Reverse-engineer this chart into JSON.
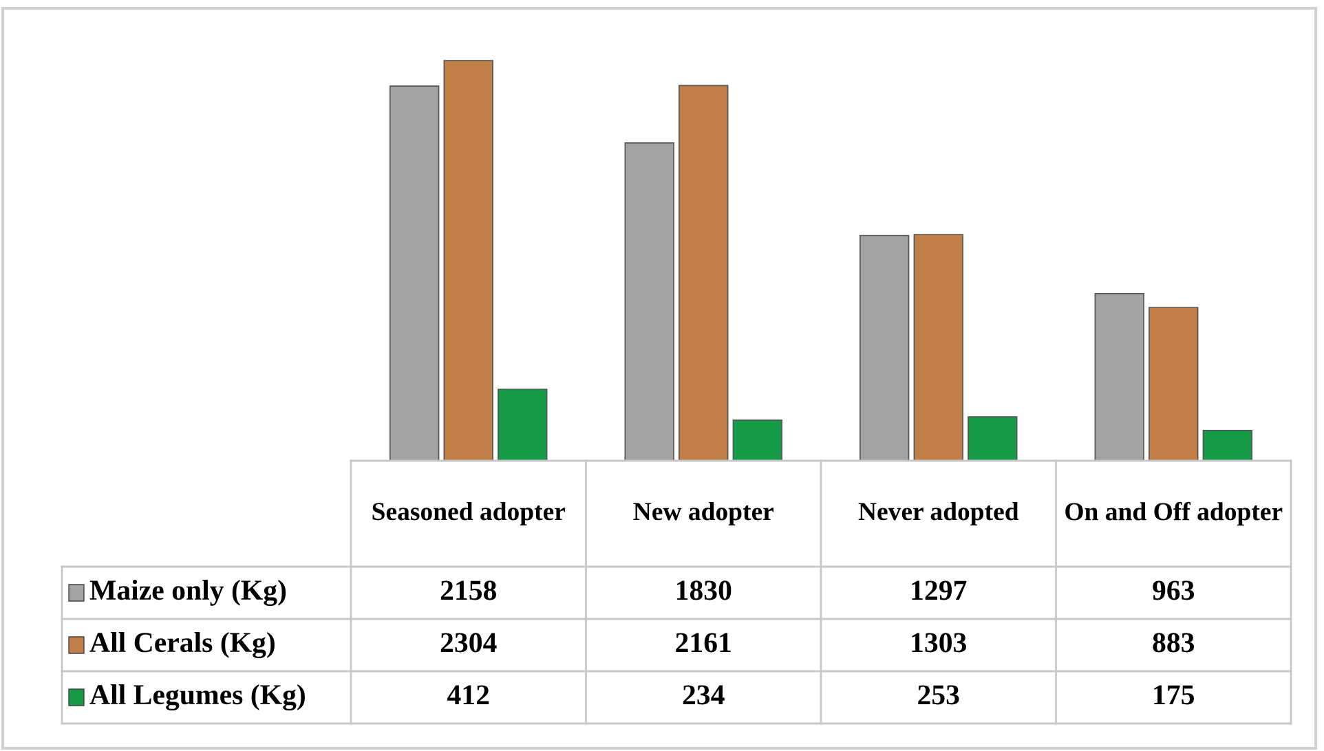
{
  "chart_data": {
    "type": "bar",
    "categories": [
      "Seasoned adopter",
      "New adopter",
      "Never adopted",
      "On and Off adopter"
    ],
    "series": [
      {
        "name": "Maize only (Kg)",
        "color": "#a3a3a3",
        "values": [
          2158,
          1830,
          1297,
          963
        ]
      },
      {
        "name": "All Cerals (Kg)",
        "color": "#c17f4a",
        "values": [
          2304,
          2161,
          1303,
          883
        ]
      },
      {
        "name": "All Legumes (Kg)",
        "color": "#159a48",
        "values": [
          412,
          234,
          253,
          175
        ]
      }
    ],
    "data_labels": true,
    "legend": "bottom"
  }
}
